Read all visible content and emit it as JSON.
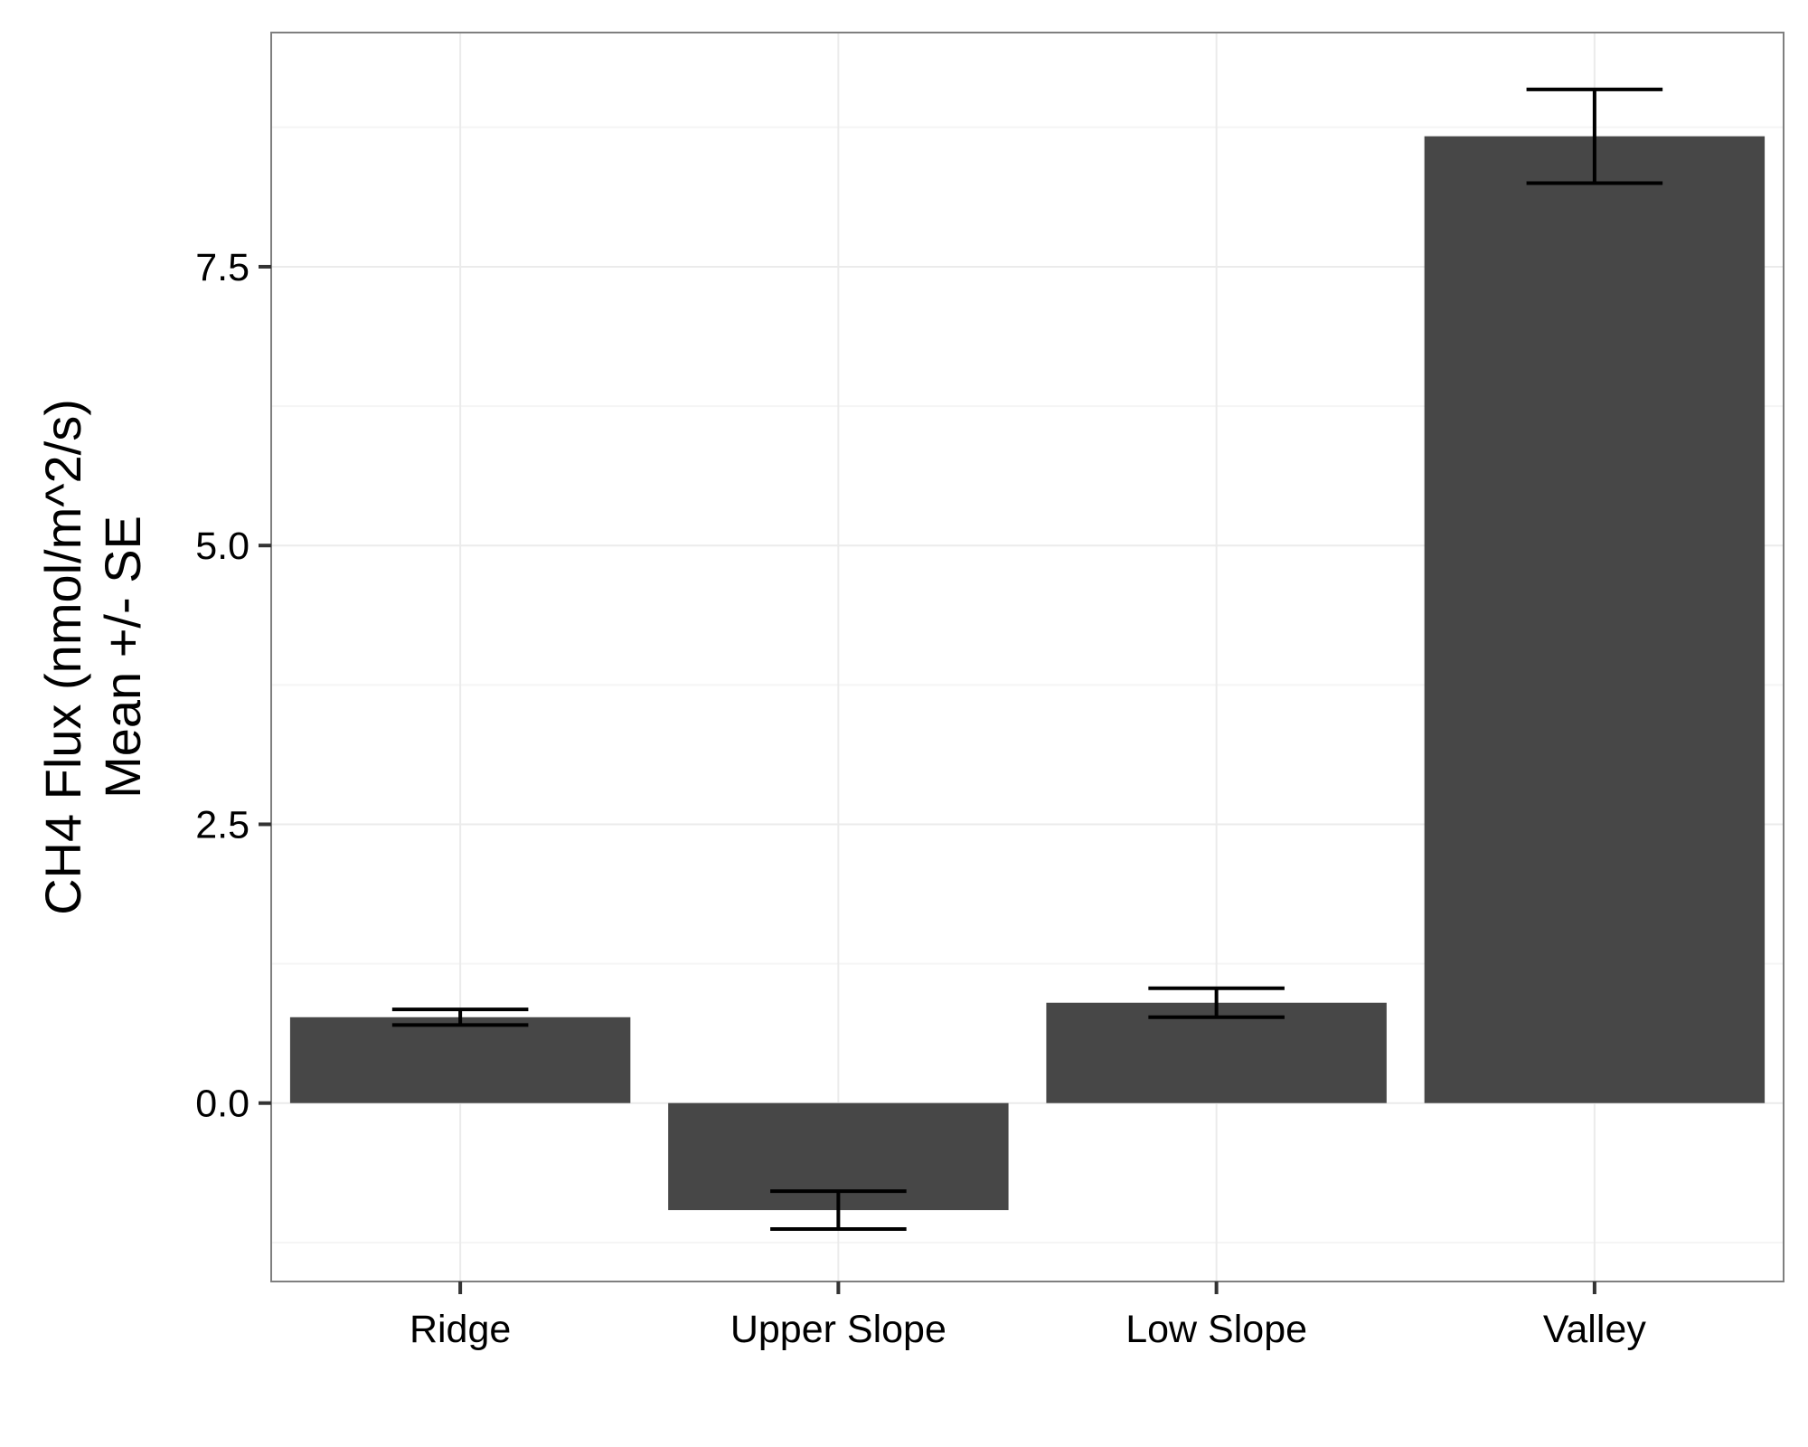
{
  "chart_data": {
    "type": "bar",
    "categories": [
      "Ridge",
      "Upper Slope",
      "Low Slope",
      "Valley"
    ],
    "values": [
      0.77,
      -0.96,
      0.9,
      8.67
    ],
    "error": [
      0.07,
      0.17,
      0.13,
      0.42
    ],
    "ylabel_lines": [
      "CH4 Flux (nmol/m^2/s)",
      "Mean +/- SE"
    ],
    "xlabel": "",
    "ylim": [
      -1.6,
      9.6
    ],
    "y_ticks": [
      0.0,
      2.5,
      5.0,
      7.5
    ],
    "y_tick_labels": [
      "0.0",
      "2.5",
      "5.0",
      "7.5"
    ],
    "grid": true,
    "bar_color": "#474747",
    "error_bar_color": "#000000",
    "grid_color": "#ebebeb",
    "panel_border_color": "#7f7f7f"
  }
}
